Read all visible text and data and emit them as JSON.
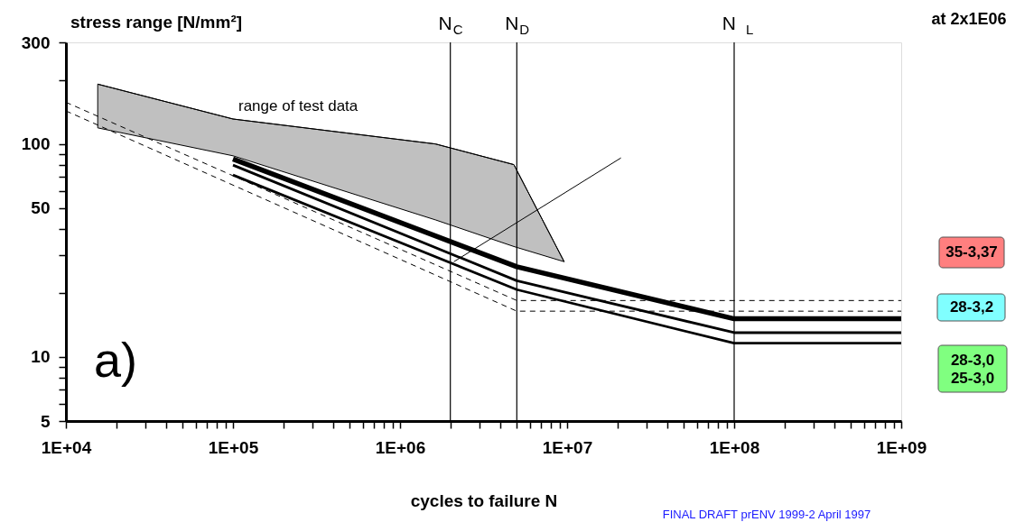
{
  "chart_data": {
    "type": "line",
    "xlabel": "cycles to failure N",
    "ylabel": "stress range [N/mm²]",
    "log": "xy",
    "grid": false,
    "xlim": [
      10000,
      1000000000
    ],
    "ylim": [
      5,
      300
    ],
    "xticks": [
      {
        "value": 10000,
        "label": "1E+04"
      },
      {
        "value": 20000,
        "label": null
      },
      {
        "value": 30000,
        "label": null
      },
      {
        "value": 40000,
        "label": null
      },
      {
        "value": 50000,
        "label": null
      },
      {
        "value": 60000,
        "label": null
      },
      {
        "value": 70000,
        "label": null
      },
      {
        "value": 80000,
        "label": null
      },
      {
        "value": 90000,
        "label": null
      },
      {
        "value": 100000,
        "label": "1E+05"
      },
      {
        "value": 200000,
        "label": null
      },
      {
        "value": 300000,
        "label": null
      },
      {
        "value": 400000,
        "label": null
      },
      {
        "value": 500000,
        "label": null
      },
      {
        "value": 600000,
        "label": null
      },
      {
        "value": 700000,
        "label": null
      },
      {
        "value": 800000,
        "label": null
      },
      {
        "value": 900000,
        "label": null
      },
      {
        "value": 1000000,
        "label": "1E+06"
      },
      {
        "value": 2000000,
        "label": null
      },
      {
        "value": 3000000,
        "label": null
      },
      {
        "value": 4000000,
        "label": null
      },
      {
        "value": 5000000,
        "label": null
      },
      {
        "value": 6000000,
        "label": null
      },
      {
        "value": 7000000,
        "label": null
      },
      {
        "value": 8000000,
        "label": null
      },
      {
        "value": 9000000,
        "label": null
      },
      {
        "value": 10000000,
        "label": "1E+07"
      },
      {
        "value": 20000000,
        "label": null
      },
      {
        "value": 30000000,
        "label": null
      },
      {
        "value": 40000000,
        "label": null
      },
      {
        "value": 50000000,
        "label": null
      },
      {
        "value": 60000000,
        "label": null
      },
      {
        "value": 70000000,
        "label": null
      },
      {
        "value": 80000000,
        "label": null
      },
      {
        "value": 90000000,
        "label": null
      },
      {
        "value": 100000000,
        "label": "1E+08"
      },
      {
        "value": 200000000,
        "label": null
      },
      {
        "value": 300000000,
        "label": null
      },
      {
        "value": 400000000,
        "label": null
      },
      {
        "value": 500000000,
        "label": null
      },
      {
        "value": 600000000,
        "label": null
      },
      {
        "value": 700000000,
        "label": null
      },
      {
        "value": 800000000,
        "label": null
      },
      {
        "value": 900000000,
        "label": null
      },
      {
        "value": 1000000000,
        "label": "1E+09"
      }
    ],
    "yticks": [
      5,
      {
        "value": 6,
        "label": null
      },
      {
        "value": 7,
        "label": null
      },
      {
        "value": 8,
        "label": null
      },
      {
        "value": 9,
        "label": null
      },
      10,
      {
        "value": 20,
        "label": null
      },
      {
        "value": 30,
        "label": null
      },
      {
        "value": 40,
        "label": null
      },
      50,
      {
        "value": 60,
        "label": null
      },
      {
        "value": 70,
        "label": null
      },
      {
        "value": 80,
        "label": null
      },
      {
        "value": 90,
        "label": null
      },
      100,
      {
        "value": 200,
        "label": null
      },
      300
    ],
    "series": [
      {
        "type": "line",
        "name": "range of test data",
        "color": "#000000",
        "line_style": "solid",
        "x": [
          15500,
          100000,
          1630000,
          4800000,
          9600000
        ],
        "values": [
          191,
          131,
          100,
          80,
          28
        ],
        "lower": [
          119,
          88,
          44,
          33,
          28
        ],
        "upper": [
          191,
          131,
          100,
          80,
          28
        ]
      },
      {
        "color": "#000000",
        "line_style": "solid",
        "x": [
          100000,
          5000000,
          100000000,
          1000000000
        ],
        "values": [
          85,
          26.5,
          15.1,
          15.1
        ]
      },
      {
        "color": "#000000",
        "line_style": "solid",
        "x": [
          100000,
          5000000,
          100000000,
          1000000000
        ],
        "values": [
          79.6,
          22.8,
          13.0,
          13.0
        ]
      },
      {
        "color": "#000000",
        "line_style": "solid",
        "x": [
          100000,
          5000000,
          100000000,
          1000000000
        ],
        "values": [
          71.5,
          20.7,
          11.6,
          11.6
        ]
      },
      {
        "color": "#000000",
        "line_style": "dashed",
        "x": [
          10000,
          5000000,
          1000000000
        ],
        "values": [
          157,
          18.4,
          18.4
        ]
      },
      {
        "color": "#000000",
        "line_style": "dashed",
        "x": [
          10000,
          5000000,
          1000000000
        ],
        "values": [
          143,
          16.4,
          16.4
        ]
      },
      {
        "color": "#000000",
        "line_style": "solid",
        "x": [
          2100000,
          21000000
        ],
        "values": [
          28,
          86
        ]
      }
    ],
    "ref_lines": [
      {
        "axis": "x",
        "value": 2000000,
        "label": "N$_{C}$"
      },
      {
        "axis": "x",
        "value": 5000000,
        "label": "N$_{D}$"
      },
      {
        "axis": "x",
        "value": 100000000,
        "label": "N  $_{L}$"
      }
    ],
    "annotations": [
      "a)",
      "at 2x1E06",
      "35-3,37",
      "28-3,2",
      "28-3,0\n25-3,0",
      "FINAL DRAFT prENV 1999-2 April 1997"
    ]
  }
}
